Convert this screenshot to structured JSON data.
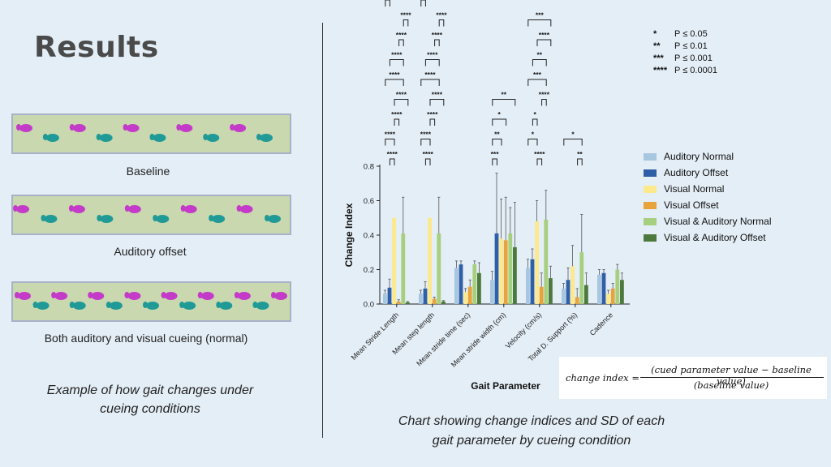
{
  "slide": {
    "title": "Results",
    "left": {
      "strip_captions": [
        "Baseline",
        "Auditory offset",
        "Both auditory and visual cueing (normal)"
      ],
      "example_caption": [
        "Example of how gait changes under",
        "cueing conditions"
      ]
    },
    "chart_caption": [
      "Chart showing change indices and SD of each",
      "gait parameter by cueing condition"
    ],
    "formula": {
      "lhs": "change index =",
      "numerator": "(cued parameter value − baseline value)",
      "denominator": "(baseline value)"
    },
    "significance_key": [
      {
        "stars": "*",
        "label": "P ≤ 0.05"
      },
      {
        "stars": "**",
        "label": "P ≤ 0.01"
      },
      {
        "stars": "***",
        "label": "P ≤ 0.001"
      },
      {
        "stars": "****",
        "label": "P ≤ 0.0001"
      }
    ],
    "colors": {
      "Auditory Normal": "#a7c6e0",
      "Auditory Offset": "#2f5fa7",
      "Visual Normal": "#fbe98c",
      "Visual Offset": "#e8a33a",
      "Visual & Auditory Normal": "#a6cf7f",
      "Visual & Auditory Offset": "#4d7a3c",
      "magenta_step": "#c43bc9",
      "teal_step": "#1f9a97"
    }
  },
  "chart_data": {
    "type": "bar",
    "title": "",
    "xlabel": "Gait Parameter",
    "ylabel": "Change Index",
    "ylim": [
      0,
      0.8
    ],
    "yticks": [
      "0.0",
      "0.2",
      "0.4",
      "0.6",
      "0.8"
    ],
    "categories": [
      "Mean Stride Length",
      "Mean step length",
      "Mean stride time (sec)",
      "Mean stride width (cm)",
      "Velocity (cm/s)",
      "Total D. Support (%)",
      "Cadence"
    ],
    "series": [
      {
        "name": "Auditory Normal",
        "values": [
          0.06,
          0.06,
          0.21,
          0.14,
          0.21,
          0.09,
          0.17
        ],
        "sd": [
          0.02,
          0.02,
          0.04,
          0.05,
          0.05,
          0.03,
          0.03
        ]
      },
      {
        "name": "Auditory Offset",
        "values": [
          0.095,
          0.09,
          0.23,
          0.41,
          0.26,
          0.14,
          0.18
        ],
        "sd": [
          0.05,
          0.04,
          0.02,
          0.35,
          0.06,
          0.07,
          0.02
        ]
      },
      {
        "name": "Visual Normal",
        "values": [
          0.5,
          0.5,
          0.07,
          0.38,
          0.48,
          0.22,
          0.06
        ],
        "sd": [
          0.0,
          0.0,
          0.02,
          0.23,
          0.12,
          0.12,
          0.02
        ]
      },
      {
        "name": "Visual Offset",
        "values": [
          0.015,
          0.03,
          0.1,
          0.37,
          0.1,
          0.04,
          0.09
        ],
        "sd": [
          0.01,
          0.01,
          0.04,
          0.25,
          0.08,
          0.05,
          0.03
        ]
      },
      {
        "name": "Visual & Auditory Normal",
        "values": [
          0.41,
          0.41,
          0.23,
          0.41,
          0.49,
          0.3,
          0.2
        ],
        "sd": [
          0.21,
          0.21,
          0.02,
          0.15,
          0.17,
          0.22,
          0.03
        ]
      },
      {
        "name": "Visual & Auditory Offset",
        "values": [
          0.01,
          0.015,
          0.18,
          0.33,
          0.15,
          0.11,
          0.14
        ],
        "sd": [
          0.005,
          0.005,
          0.06,
          0.26,
          0.07,
          0.07,
          0.04
        ]
      }
    ],
    "legend_position": "right",
    "significance_brackets": [
      {
        "category": 0,
        "label": "****",
        "from": 1,
        "to": 2
      },
      {
        "category": 0,
        "label": "****",
        "from": 0,
        "to": 2
      },
      {
        "category": 0,
        "label": "****",
        "from": 2,
        "to": 3
      },
      {
        "category": 0,
        "label": "****",
        "from": 2,
        "to": 5
      },
      {
        "category": 0,
        "label": "****",
        "from": 0,
        "to": 4
      },
      {
        "category": 0,
        "label": "****",
        "from": 1,
        "to": 4
      },
      {
        "category": 0,
        "label": "****",
        "from": 3,
        "to": 4
      },
      {
        "category": 0,
        "label": "****",
        "from": 4,
        "to": 5
      },
      {
        "category": 0,
        "label": "****",
        "from": 0,
        "to": 1
      },
      {
        "category": 1,
        "label": "****",
        "from": 1,
        "to": 2
      },
      {
        "category": 1,
        "label": "****",
        "from": 0,
        "to": 2
      },
      {
        "category": 1,
        "label": "****",
        "from": 2,
        "to": 3
      },
      {
        "category": 1,
        "label": "****",
        "from": 2,
        "to": 5
      },
      {
        "category": 1,
        "label": "****",
        "from": 0,
        "to": 4
      },
      {
        "category": 1,
        "label": "****",
        "from": 1,
        "to": 4
      },
      {
        "category": 1,
        "label": "****",
        "from": 3,
        "to": 4
      },
      {
        "category": 1,
        "label": "****",
        "from": 4,
        "to": 5
      },
      {
        "category": 1,
        "label": "****",
        "from": 0,
        "to": 1
      },
      {
        "category": 3,
        "label": "***",
        "from": 0,
        "to": 1
      },
      {
        "category": 3,
        "label": "**",
        "from": 0,
        "to": 2
      },
      {
        "category": 3,
        "label": "*",
        "from": 0,
        "to": 3
      },
      {
        "category": 3,
        "label": "**",
        "from": 0,
        "to": 5
      },
      {
        "category": 4,
        "label": "****",
        "from": 2,
        "to": 3
      },
      {
        "category": 4,
        "label": "*",
        "from": 0,
        "to": 2
      },
      {
        "category": 4,
        "label": "*",
        "from": 1,
        "to": 2
      },
      {
        "category": 4,
        "label": "****",
        "from": 3,
        "to": 4
      },
      {
        "category": 4,
        "label": "***",
        "from": 0,
        "to": 4
      },
      {
        "category": 4,
        "label": "**",
        "from": 1,
        "to": 4
      },
      {
        "category": 4,
        "label": "****",
        "from": 2,
        "to": 5
      },
      {
        "category": 4,
        "label": "***",
        "from": 0,
        "to": 5
      },
      {
        "category": 5,
        "label": "**",
        "from": 3,
        "to": 4
      },
      {
        "category": 5,
        "label": "*",
        "from": 0,
        "to": 4
      }
    ]
  }
}
